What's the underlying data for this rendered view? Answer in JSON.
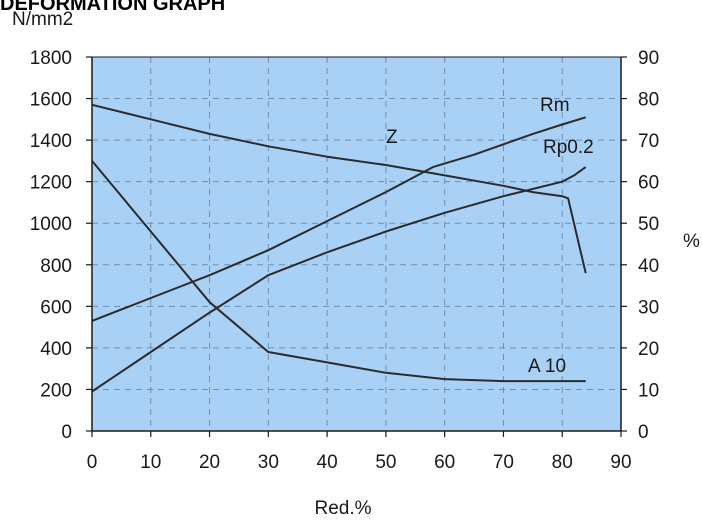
{
  "chart_data": {
    "type": "line",
    "title": "DEFORMATION GRAPH",
    "xlabel": "Red.%",
    "ylabel_left": "N/mm2",
    "ylabel_right": "%",
    "xlim": [
      0,
      90
    ],
    "ylim_left": [
      0,
      1800
    ],
    "ylim_right": [
      0,
      90
    ],
    "xticks": [
      "0",
      "10",
      "20",
      "30",
      "40",
      "50",
      "60",
      "70",
      "80",
      "90"
    ],
    "yticks_left": [
      "0",
      "200",
      "400",
      "600",
      "800",
      "1000",
      "1200",
      "1400",
      "1600",
      "1800"
    ],
    "yticks_right": [
      "0",
      "10",
      "20",
      "30",
      "40",
      "50",
      "60",
      "70",
      "80",
      "90"
    ],
    "grid": true,
    "background": "#a9d0f5",
    "line_color": "#2b2b2b",
    "series": [
      {
        "name": "Rm",
        "axis": "left",
        "x": [
          0,
          10,
          20,
          30,
          40,
          50,
          58,
          65,
          70,
          75,
          80,
          84
        ],
        "y": [
          530,
          640,
          750,
          870,
          1010,
          1150,
          1270,
          1330,
          1380,
          1430,
          1475,
          1510
        ]
      },
      {
        "name": "Rp0.2",
        "axis": "left",
        "x": [
          0,
          10,
          20,
          30,
          40,
          50,
          60,
          70,
          80,
          82,
          84
        ],
        "y": [
          190,
          380,
          570,
          750,
          860,
          960,
          1050,
          1130,
          1200,
          1230,
          1270
        ]
      },
      {
        "name": "Z",
        "axis": "right",
        "x": [
          0,
          10,
          20,
          30,
          40,
          50,
          60,
          70,
          75,
          80,
          81,
          84
        ],
        "y": [
          78.5,
          75,
          71.5,
          68.5,
          66,
          64,
          61.5,
          59,
          57.5,
          56.5,
          56,
          38
        ]
      },
      {
        "name": "A10",
        "axis": "right",
        "x": [
          0,
          10,
          20,
          30,
          40,
          50,
          60,
          70,
          80,
          84
        ],
        "y": [
          65,
          48,
          31,
          19,
          16.5,
          14,
          12.5,
          12,
          12,
          12
        ]
      }
    ],
    "labels": [
      "Rm",
      "Rp0.2",
      "Z",
      "A 10"
    ]
  }
}
